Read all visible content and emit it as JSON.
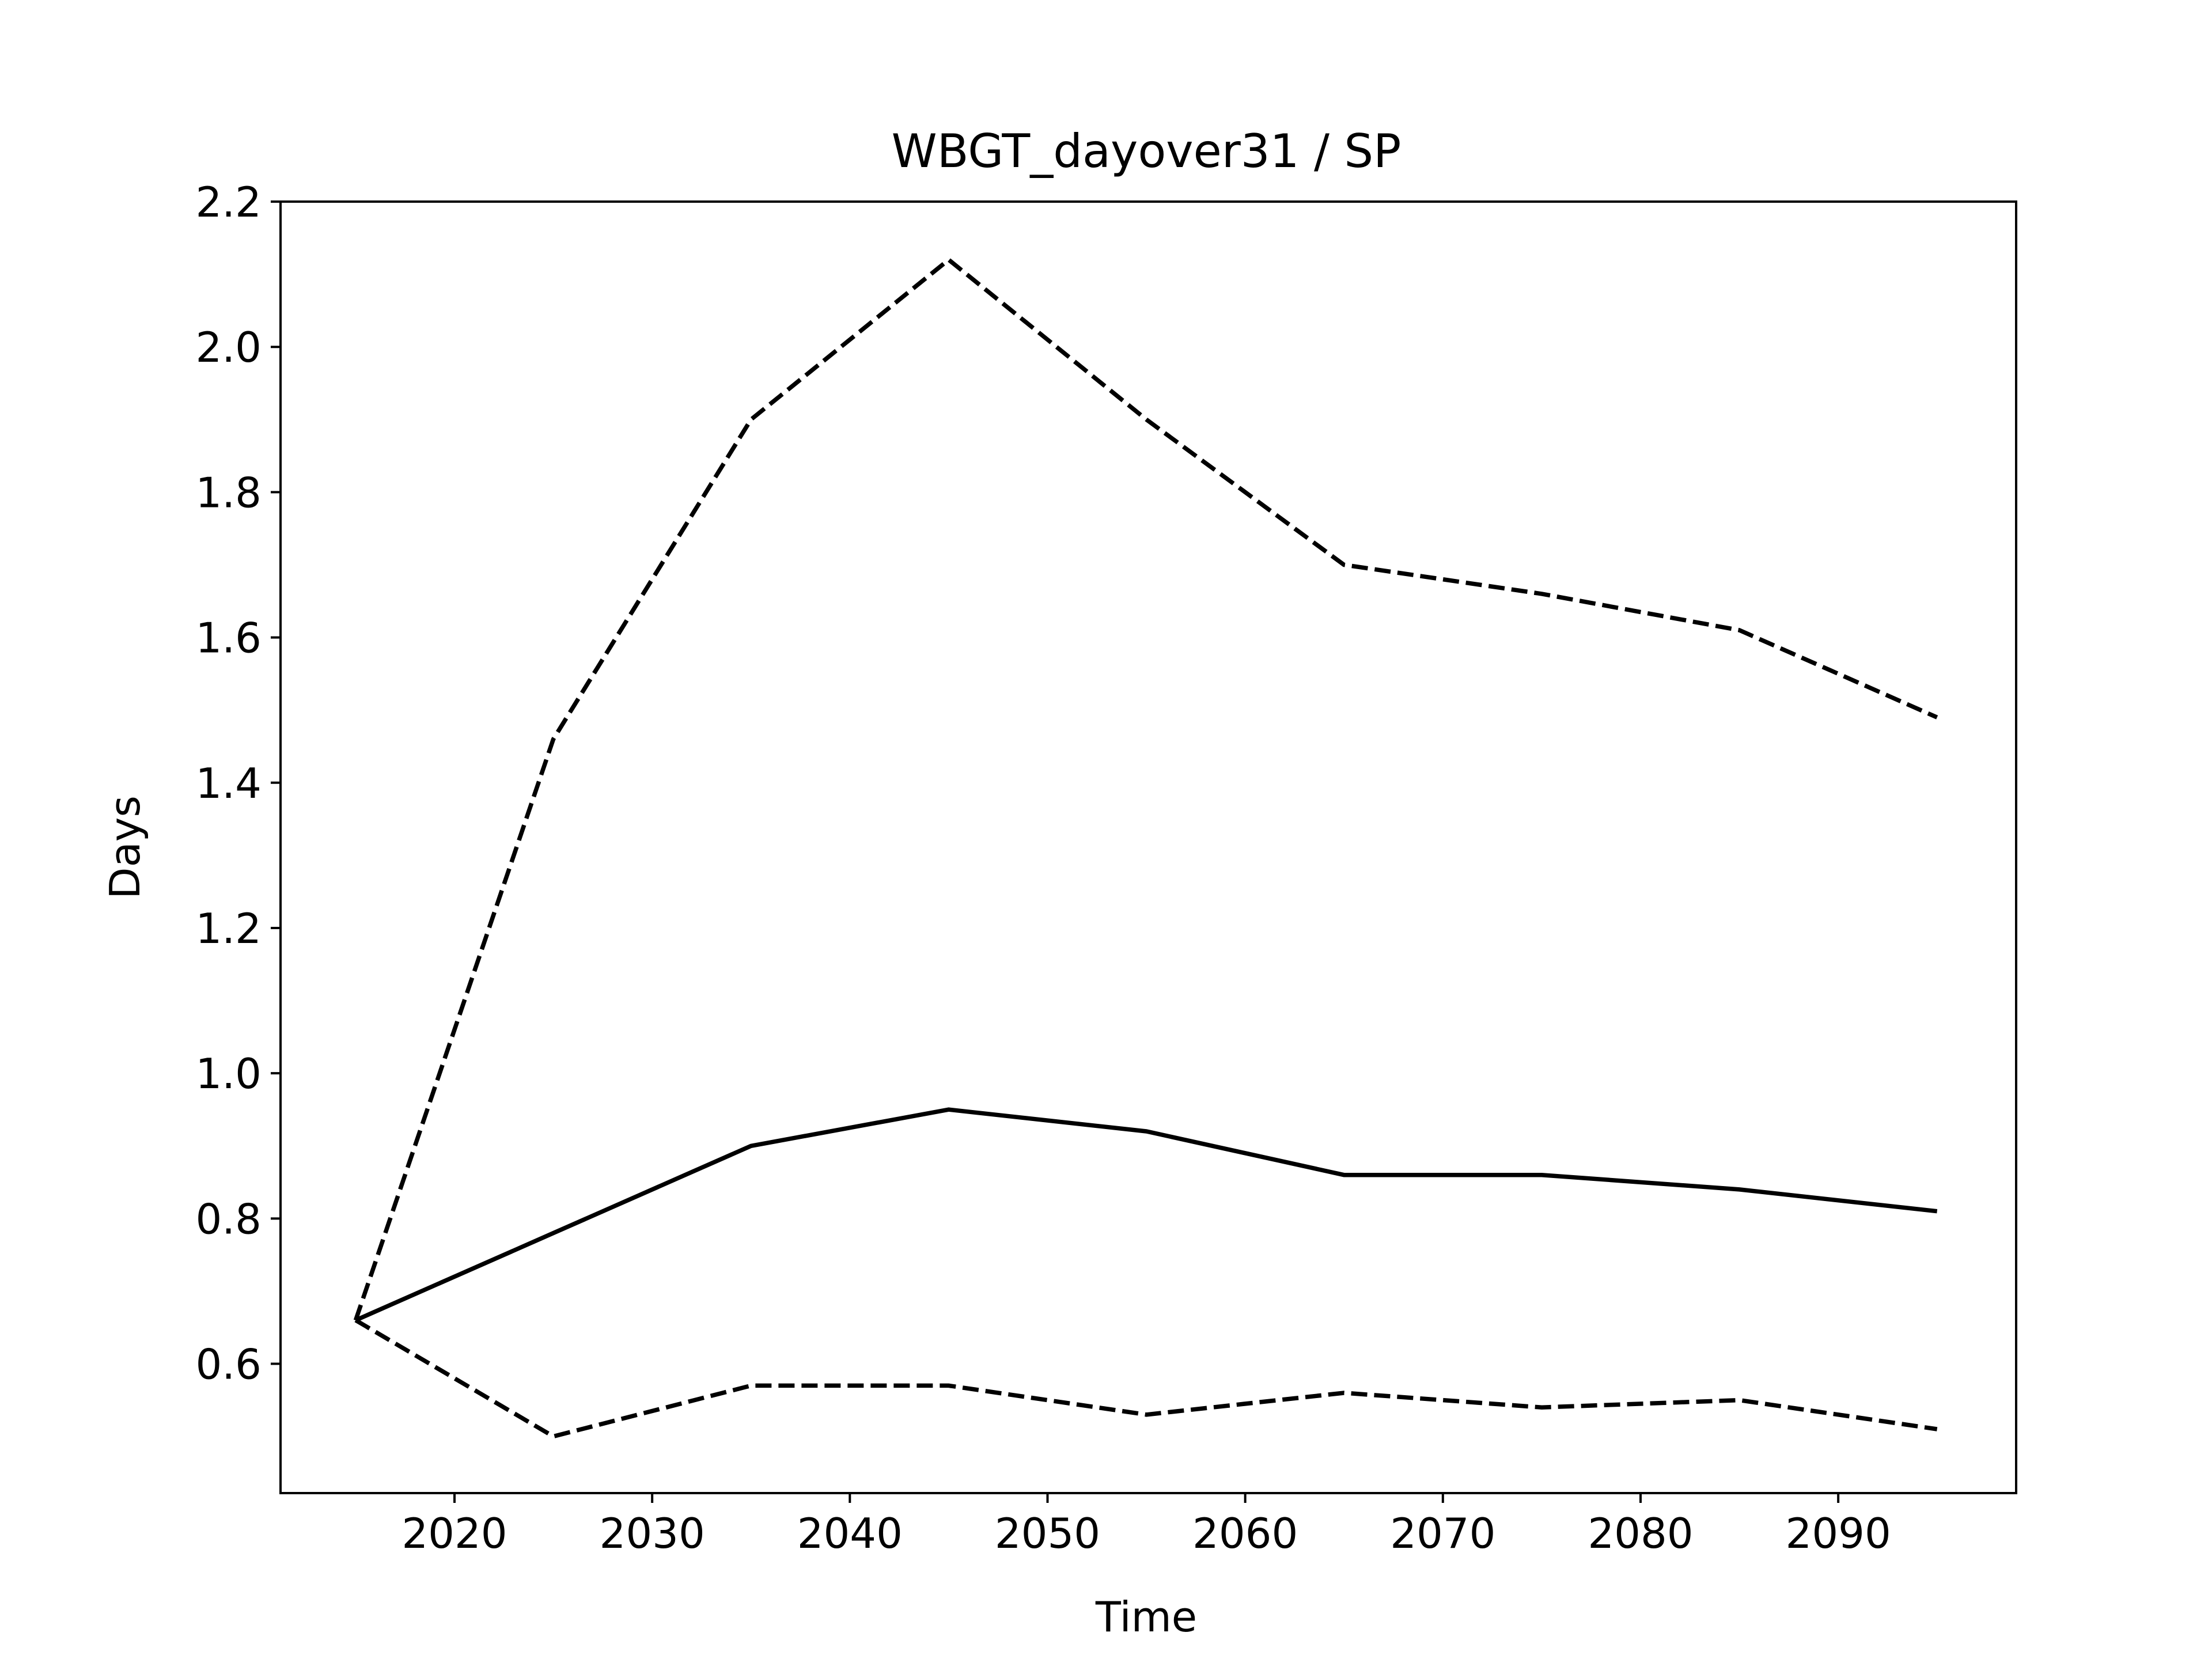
{
  "chart_data": {
    "type": "line",
    "title": "WBGT_dayover31 / SP",
    "xlabel": "Time",
    "ylabel": "Days",
    "xlim": [
      2011.2,
      2099
    ],
    "ylim": [
      0.422,
      2.2
    ],
    "xticks": [
      "2020",
      "2030",
      "2040",
      "2050",
      "2060",
      "2070",
      "2080",
      "2090"
    ],
    "yticks": [
      "0.6",
      "0.8",
      "1.0",
      "1.2",
      "1.4",
      "1.6",
      "1.8",
      "2.0",
      "2.2"
    ],
    "grid": false,
    "x": [
      2015,
      2025,
      2035,
      2045,
      2055,
      2065,
      2075,
      2085,
      2095
    ],
    "series": [
      {
        "style": "dashed",
        "color": "#000000",
        "values": [
          0.66,
          1.46,
          1.9,
          2.12,
          1.9,
          1.7,
          1.66,
          1.61,
          1.49
        ]
      },
      {
        "style": "solid",
        "color": "#000000",
        "values": [
          0.66,
          0.78,
          0.9,
          0.95,
          0.92,
          0.86,
          0.86,
          0.84,
          0.81
        ]
      },
      {
        "style": "dashed",
        "color": "#000000",
        "values": [
          0.66,
          0.5,
          0.57,
          0.57,
          0.53,
          0.56,
          0.54,
          0.55,
          0.51
        ]
      }
    ]
  }
}
